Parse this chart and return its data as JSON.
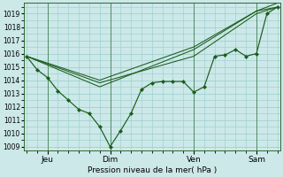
{
  "bg_color": "#cce8e8",
  "grid_color": "#99cccc",
  "line_color": "#1a5c1a",
  "marker_color": "#1a5c1a",
  "axis_label": "Pression niveau de la mer( hPa )",
  "ylim": [
    1009,
    1019.5
  ],
  "yticks": [
    1009,
    1010,
    1011,
    1012,
    1013,
    1014,
    1015,
    1016,
    1017,
    1018,
    1019
  ],
  "xlim": [
    0,
    96
  ],
  "day_ticks": [
    8,
    32,
    64,
    88
  ],
  "day_labels": [
    "Jeu",
    "Dim",
    "Ven",
    "Sam"
  ],
  "main_series_x": [
    0,
    4,
    8,
    12,
    16,
    20,
    24,
    28,
    32,
    36,
    40,
    44,
    48,
    52,
    56,
    60,
    64,
    68,
    72,
    76,
    80,
    84,
    88,
    92,
    96
  ],
  "main_series_y": [
    1015.8,
    1014.8,
    1014.2,
    1013.2,
    1012.5,
    1011.8,
    1011.5,
    1010.5,
    1009.0,
    1010.2,
    1011.5,
    1013.3,
    1013.8,
    1013.9,
    1013.9,
    1013.9,
    1013.1,
    1013.5,
    1015.8,
    1015.9,
    1016.3,
    1015.8,
    1016.0,
    1019.0,
    1019.5
  ],
  "forecast_lines": [
    {
      "x": [
        0,
        28,
        64,
        88,
        96
      ],
      "y": [
        1015.8,
        1013.8,
        1015.8,
        1019.0,
        1019.5
      ]
    },
    {
      "x": [
        0,
        28,
        64,
        88,
        96
      ],
      "y": [
        1015.8,
        1013.5,
        1016.3,
        1019.2,
        1019.5
      ]
    },
    {
      "x": [
        0,
        28,
        64,
        88,
        96
      ],
      "y": [
        1015.8,
        1014.0,
        1016.5,
        1019.2,
        1019.8
      ]
    }
  ]
}
